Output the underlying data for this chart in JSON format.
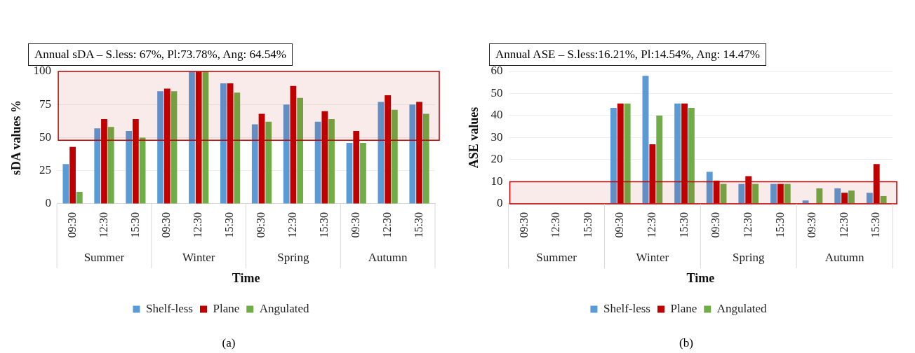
{
  "chart_data": [
    {
      "type": "bar",
      "xlabel": "Time",
      "ylabel": "sDA values %",
      "categories": [
        "09:30",
        "12:30",
        "15:30",
        "09:30",
        "12:30",
        "15:30",
        "09:30",
        "12:30",
        "15:30",
        "09:30",
        "12:30",
        "15:30"
      ],
      "series": [
        {
          "name": "Shelf-less",
          "color": "#5b9bd5",
          "values": [
            30,
            57,
            55,
            85,
            100,
            91,
            60,
            75,
            62,
            46,
            77,
            75
          ]
        },
        {
          "name": "Plane",
          "color": "#c00000",
          "values": [
            43,
            64,
            64,
            87,
            100,
            91,
            68,
            89,
            70,
            55,
            82,
            77
          ]
        },
        {
          "name": "Angulated",
          "color": "#70ad47",
          "values": [
            9,
            58,
            50,
            85,
            100,
            84,
            62,
            80,
            64,
            46,
            71,
            68
          ]
        }
      ],
      "ylim": [
        0,
        100
      ],
      "yticks": [
        0,
        25,
        50,
        75,
        100
      ],
      "grid": "y",
      "legend": "bottom",
      "bands": [
        {
          "axis": "y",
          "from": 48,
          "to": 100,
          "color": "#c00000"
        }
      ],
      "annotations": [
        "Annual sDA – S.less: 67%, Pl:73.78%, Ang: 64.54%",
        "Summer",
        "Winter",
        "Spring",
        "Autumn",
        "(a)"
      ]
    },
    {
      "type": "bar",
      "xlabel": "Time",
      "ylabel": "ASE values",
      "categories": [
        "09:30",
        "12:30",
        "15:30",
        "09:30",
        "12:30",
        "15:30",
        "09:30",
        "12:30",
        "15:30",
        "09:30",
        "12:30",
        "15:30"
      ],
      "series": [
        {
          "name": "Shelf-less",
          "color": "#5b9bd5",
          "values": [
            0,
            0,
            0,
            43.5,
            58,
            45.5,
            14.5,
            9,
            9,
            1.5,
            7,
            5
          ]
        },
        {
          "name": "Plane",
          "color": "#c00000",
          "values": [
            0,
            0,
            0,
            45.5,
            27,
            45.5,
            10.5,
            12.5,
            9,
            0,
            5,
            18
          ]
        },
        {
          "name": "Angulated",
          "color": "#70ad47",
          "values": [
            0,
            0,
            0,
            45.5,
            40,
            43.5,
            9,
            9,
            9,
            7,
            6,
            3.5
          ]
        }
      ],
      "ylim": [
        0,
        60
      ],
      "yticks": [
        0,
        10,
        20,
        30,
        40,
        50,
        60
      ],
      "grid": "y",
      "legend": "bottom",
      "bands": [
        {
          "axis": "y",
          "from": 0,
          "to": 10,
          "color": "#c00000"
        }
      ],
      "annotations": [
        "Annual ASE – S.less:16.21%, Pl:14.54%, Ang: 14.47%",
        "Summer",
        "Winter",
        "Spring",
        "Autumn",
        "(b)"
      ]
    }
  ]
}
